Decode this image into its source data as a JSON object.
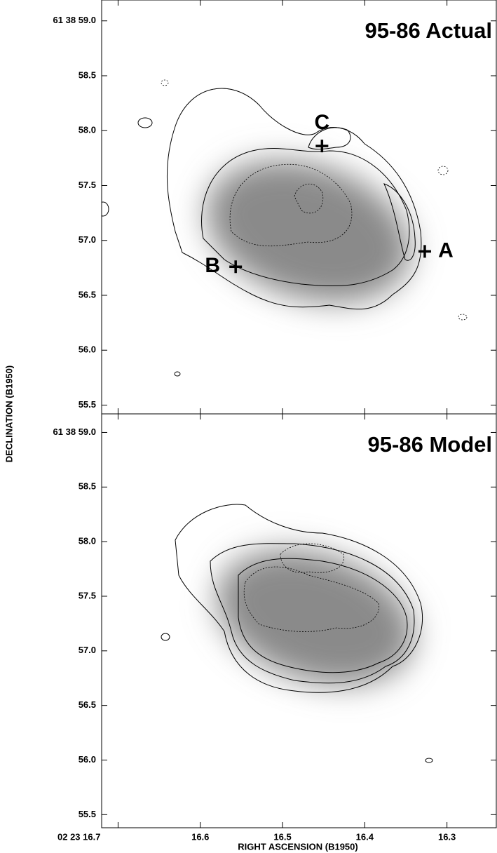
{
  "chart_data": [
    {
      "type": "image",
      "title": "95-86 Actual",
      "ylabel": "DECLINATION (B1950)",
      "xlim": [
        16.72,
        16.24
      ],
      "xticks": [
        16.7,
        16.6,
        16.5,
        16.4,
        16.3
      ],
      "ylim": [
        55.42,
        59.19
      ],
      "yticks": [
        {
          "value": 59,
          "label": "61 38 59.0"
        },
        58.5,
        {
          "value": 58,
          "label": "58.0"
        },
        57.5,
        {
          "value": 57,
          "label": "57.0"
        },
        56.5,
        {
          "value": 56,
          "label": "56.0"
        },
        55.5
      ],
      "markers": [
        {
          "label": "A",
          "x": 16.327,
          "y": 56.9
        },
        {
          "label": "B",
          "x": 16.557,
          "y": 56.76
        },
        {
          "label": "C",
          "x": 16.452,
          "y": 57.86
        }
      ]
    },
    {
      "type": "image",
      "title": "95-86 Model",
      "xlabel": "RIGHT ASCENSION (B1950)",
      "xlim": [
        16.72,
        16.24
      ],
      "xticks": [
        {
          "value": 16.7,
          "label": "02 23 16.7"
        },
        16.6,
        16.5,
        16.4,
        16.3
      ],
      "ylim": [
        55.38,
        59.17
      ],
      "yticks": [
        {
          "value": 59,
          "label": "61 38 59.0"
        },
        58.5,
        {
          "value": 58,
          "label": "58.0"
        },
        57.5,
        {
          "value": 57,
          "label": "57.0"
        },
        56.5,
        {
          "value": 56,
          "label": "56.0"
        },
        55.5
      ]
    }
  ]
}
